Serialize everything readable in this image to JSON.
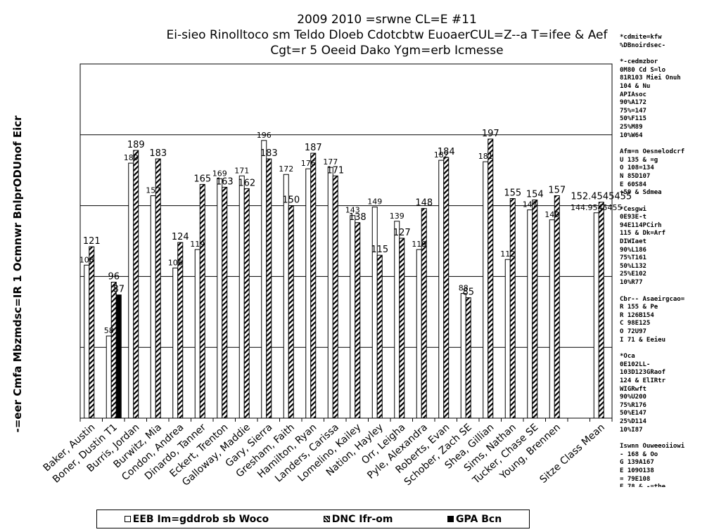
{
  "titles": [
    "2009 2010 =srwne CL=E #11",
    "Ei-sieo Rinolltoco sm Teldo Dloeb Cdotcbtw EuoaerCUL=Z--a T=ifee & Aef",
    "Cgt=r 5 Oeeid Dako Ygm=erb Icmesse"
  ],
  "side_notes": [
    "*cdmite=kfw\n%DBnoirdsec-",
    "*-cedmzbor\n0M80 Cd S=lo\n81R103 Miei Onuh\n104 & Nu\nAPIAsoc\n90%A172\n75%=147\n50%F115\n25%M89\n10%W64",
    "Afm=n Oesnelodcrf\nU 135 & =g\nO 108=134\nN 85D107\nE 60S84\n+59 & Sdmea",
    "*Cesgwi\n0E93E-t\n94E114PCirh\n115 & Dk=Arf\nDIWIaet\n90%L186\n75%T161\n50%L132\n25%E102\n10%R77",
    "Cbr-- Asaeirgcao=\nR 155 & Pe\nR 126B154\nC 98E125\nO 72U97\nI 71 & Eeieu",
    "*Oca\n0E102LL-\n103D123GRaof\n124 & ElIRtr\nWIGRwft\n90%U200\n75%R176\n50%E147\n25%D114\n10%I87",
    "Iswnn Ouweeoiiowi\n- 168 & Oo\nG 139A167\nE 109O138\n= 79E108\nE 78 & -=tbe"
  ],
  "legend": [
    {
      "label": "EEB Im=gddrob sb Woco",
      "pattern": "hollow"
    },
    {
      "label": "DNC Ifr-om",
      "pattern": "hatched"
    },
    {
      "label": "GPA Bcn",
      "pattern": "solid"
    }
  ],
  "chart_data": {
    "type": "bar",
    "title": "2009 2010 =srwne CL=E #11",
    "ylabel": "-=eer Cmfa Mbzmdsc=IR 1 Ocmnwr BnlprODUnof Eicr",
    "xlabel": "",
    "ylim": [
      0,
      250
    ],
    "grid": true,
    "legend_position": "bottom",
    "categories": [
      "Baker, Austin",
      "Boner, Dustin T1",
      "Burris, Jordan",
      "Burwitz, Mia",
      "Condon, Andrea",
      "Dinardo, Tanner",
      "Eckert, Trenton",
      "Galloway, Maddie",
      "Gary, Sierra",
      "Gresham, Faith",
      "Hamilton, Ryan",
      "Landers, Carissa",
      "Lomelino, Kailey",
      "Nation, Hayley",
      "Orr, Leigha",
      "Pyle, Alexandra",
      "Roberts, Evan",
      "Schober, Zach SE",
      "Shea, Gillian",
      "Sims, Nathan",
      "Tucker, Chase SE",
      "Young, Brennen",
      "",
      "Sitze Class Mean"
    ],
    "series": [
      {
        "name": "EEB Im=gddrob sb Woco",
        "pattern": "hollow",
        "values": [
          108,
          58,
          180,
          157,
          106,
          119,
          169,
          171,
          196,
          172,
          176,
          177,
          143,
          149,
          139,
          119,
          182,
          88,
          181,
          112,
          147,
          140,
          null,
          144.9545455
        ],
        "labels": [
          "108",
          "58",
          "180",
          "157",
          "106",
          "119",
          "169",
          "171",
          "196",
          "172",
          "176",
          "177",
          "143",
          "149",
          "139",
          "119",
          "182",
          "88",
          "181",
          "112",
          "147",
          "140",
          "",
          "144.9545455"
        ]
      },
      {
        "name": "DNC Ifr-om",
        "pattern": "hatched",
        "values": [
          121,
          96,
          189,
          183,
          124,
          165,
          163,
          162,
          183,
          150,
          187,
          171,
          138,
          115,
          127,
          148,
          184,
          85,
          197,
          155,
          154,
          157,
          null,
          152.4545455
        ],
        "labels": [
          "121",
          "96",
          "189",
          "183",
          "124",
          "165",
          "163",
          "162",
          "183",
          "150",
          "187",
          "171",
          "138",
          "115",
          "127",
          "148",
          "184",
          "85",
          "197",
          "155",
          "154",
          "157",
          "",
          "152.4545455"
        ]
      },
      {
        "name": "GPA Bcn",
        "pattern": "solid",
        "values": [
          null,
          87,
          null,
          null,
          null,
          null,
          null,
          null,
          null,
          null,
          null,
          null,
          null,
          null,
          null,
          null,
          null,
          null,
          null,
          null,
          null,
          null,
          null,
          null
        ],
        "labels": [
          "",
          "87",
          "",
          "",
          "",
          "",
          "",
          "",
          "",
          "",
          "",
          "",
          "",
          "",
          "",
          "",
          "",
          "",
          "",
          "",
          "",
          "",
          "",
          ""
        ]
      }
    ]
  }
}
